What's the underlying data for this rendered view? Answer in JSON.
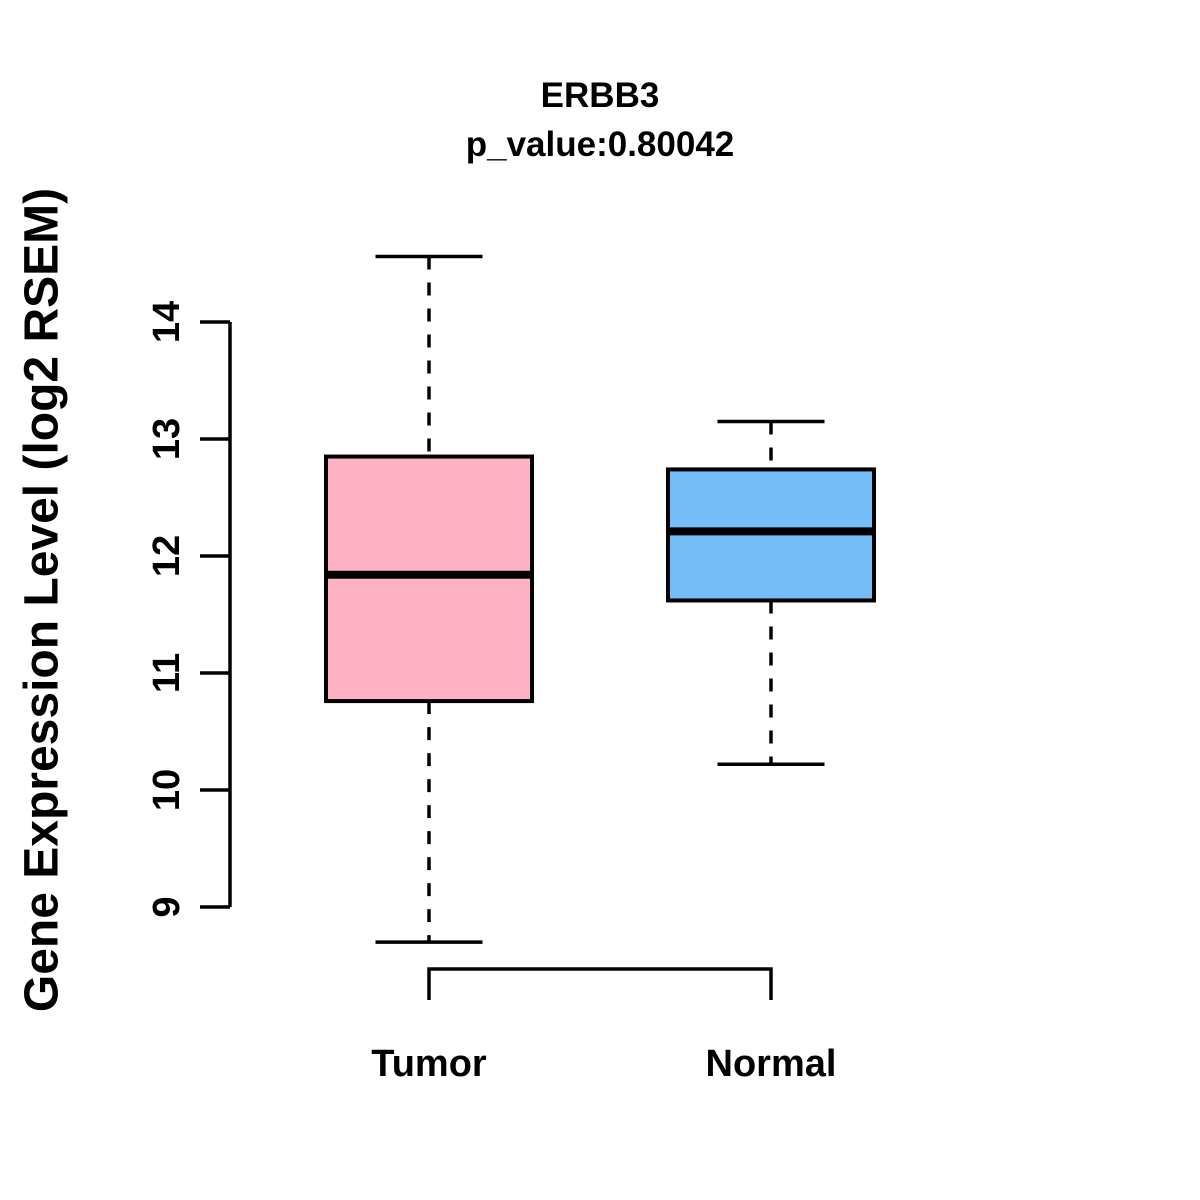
{
  "page": {
    "background": "#ffffff"
  },
  "chart_data": {
    "type": "boxplot",
    "title": "ERBB3",
    "subtitle": "p_value:0.80042",
    "gene": "ERBB3",
    "p_value": 0.80042,
    "ylabel": "Gene Expression Level (log2 RSEM)",
    "xlabel": "",
    "categories": [
      "Tumor",
      "Normal"
    ],
    "yticks": [
      9,
      10,
      11,
      12,
      13,
      14
    ],
    "ylim": [
      8.5,
      14.8
    ],
    "grid": false,
    "legend": "none",
    "orientation": "vertical",
    "series": [
      {
        "name": "Tumor",
        "color": "#FFB2C4",
        "whisker_low": 8.7,
        "q1": 10.76,
        "median": 11.84,
        "q3": 12.85,
        "whisker_high": 14.56
      },
      {
        "name": "Normal",
        "color": "#74BDF6",
        "whisker_low": 10.22,
        "q1": 11.62,
        "median": 12.21,
        "q3": 12.74,
        "whisker_high": 13.15
      }
    ],
    "box_border_color": "#000000",
    "median_color": "#000000",
    "whisker_style": "dashed",
    "axis_color": "#000000"
  }
}
